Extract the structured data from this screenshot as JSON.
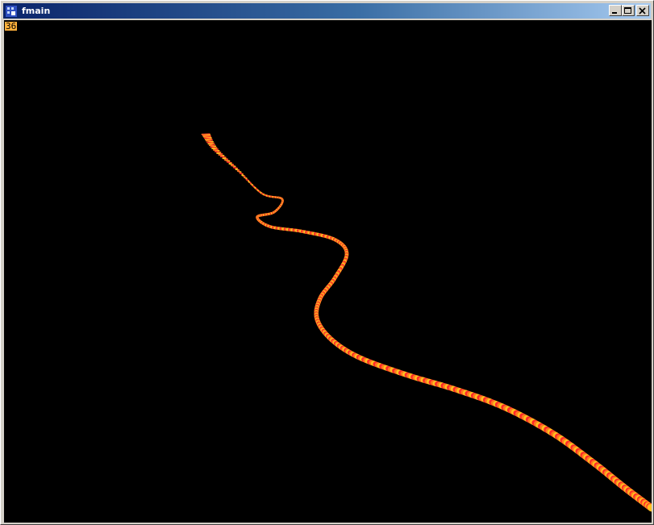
{
  "window": {
    "title": "fmain"
  },
  "overlay": {
    "fps": "36"
  },
  "colors": {
    "titlebar_start": "#0a246a",
    "titlebar_end": "#a6caf0",
    "background": "#000000",
    "fps_bg": "#ffb13b",
    "curve_hot": "#ff2a2a",
    "curve_warm": "#ff7a1e",
    "curve_yellow": "#ffc020"
  },
  "icons": {
    "app": "app-icon",
    "minimize": "minimize-icon",
    "maximize": "maximize-icon",
    "close": "close-icon"
  }
}
